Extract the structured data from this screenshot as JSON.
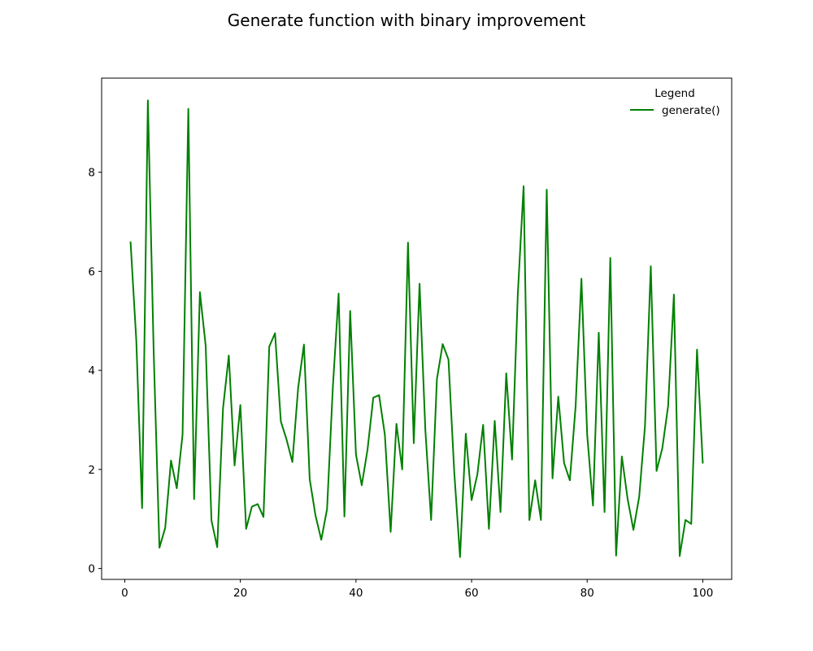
{
  "chart_data": {
    "type": "line",
    "title": "Generate function with binary improvement",
    "xlabel": "",
    "ylabel": "",
    "xlim": [
      -4,
      105
    ],
    "ylim": [
      -0.22,
      9.9
    ],
    "xticks": [
      0,
      20,
      40,
      60,
      80,
      100
    ],
    "yticks": [
      0,
      2,
      4,
      6,
      8
    ],
    "grid": false,
    "legend": {
      "title": "Legend",
      "placement": "top-right"
    },
    "series": [
      {
        "name": "generate()",
        "color": "#008000",
        "x": [
          1,
          2,
          3,
          4,
          5,
          6,
          7,
          8,
          9,
          10,
          11,
          12,
          13,
          14,
          15,
          16,
          17,
          18,
          19,
          20,
          21,
          22,
          23,
          24,
          25,
          26,
          27,
          28,
          29,
          30,
          31,
          32,
          33,
          34,
          35,
          36,
          37,
          38,
          39,
          40,
          41,
          42,
          43,
          44,
          45,
          46,
          47,
          48,
          49,
          50,
          51,
          52,
          53,
          54,
          55,
          56,
          57,
          58,
          59,
          60,
          61,
          62,
          63,
          64,
          65,
          66,
          67,
          68,
          69,
          70,
          71,
          72,
          73,
          74,
          75,
          76,
          77,
          78,
          79,
          80,
          81,
          82,
          83,
          84,
          85,
          86,
          87,
          88,
          89,
          90,
          91,
          92,
          93,
          94,
          95,
          96,
          97,
          98,
          99,
          100
        ],
        "values": [
          6.6,
          4.6,
          1.22,
          9.45,
          4.4,
          0.42,
          0.82,
          2.18,
          1.62,
          2.7,
          9.28,
          1.4,
          5.58,
          4.5,
          0.97,
          0.43,
          3.23,
          4.3,
          2.08,
          3.3,
          0.8,
          1.25,
          1.3,
          1.04,
          4.48,
          4.75,
          2.97,
          2.6,
          2.15,
          3.65,
          4.52,
          1.8,
          1.07,
          0.58,
          1.2,
          3.66,
          5.55,
          1.05,
          5.2,
          2.3,
          1.68,
          2.4,
          3.45,
          3.5,
          2.7,
          0.74,
          2.92,
          2.0,
          6.58,
          2.53,
          5.75,
          2.8,
          0.98,
          3.82,
          4.53,
          4.22,
          1.95,
          0.23,
          2.72,
          1.38,
          1.9,
          2.9,
          0.8,
          2.98,
          1.14,
          3.94,
          2.2,
          5.55,
          7.72,
          0.98,
          1.78,
          0.98,
          7.65,
          1.82,
          3.47,
          2.13,
          1.78,
          3.28,
          5.85,
          2.7,
          1.27,
          4.76,
          1.14,
          6.27,
          0.26,
          2.26,
          1.4,
          0.78,
          1.45,
          2.88,
          6.1,
          1.97,
          2.43,
          3.28,
          5.53,
          0.25,
          0.98,
          0.9,
          4.42,
          2.12
        ]
      }
    ]
  }
}
